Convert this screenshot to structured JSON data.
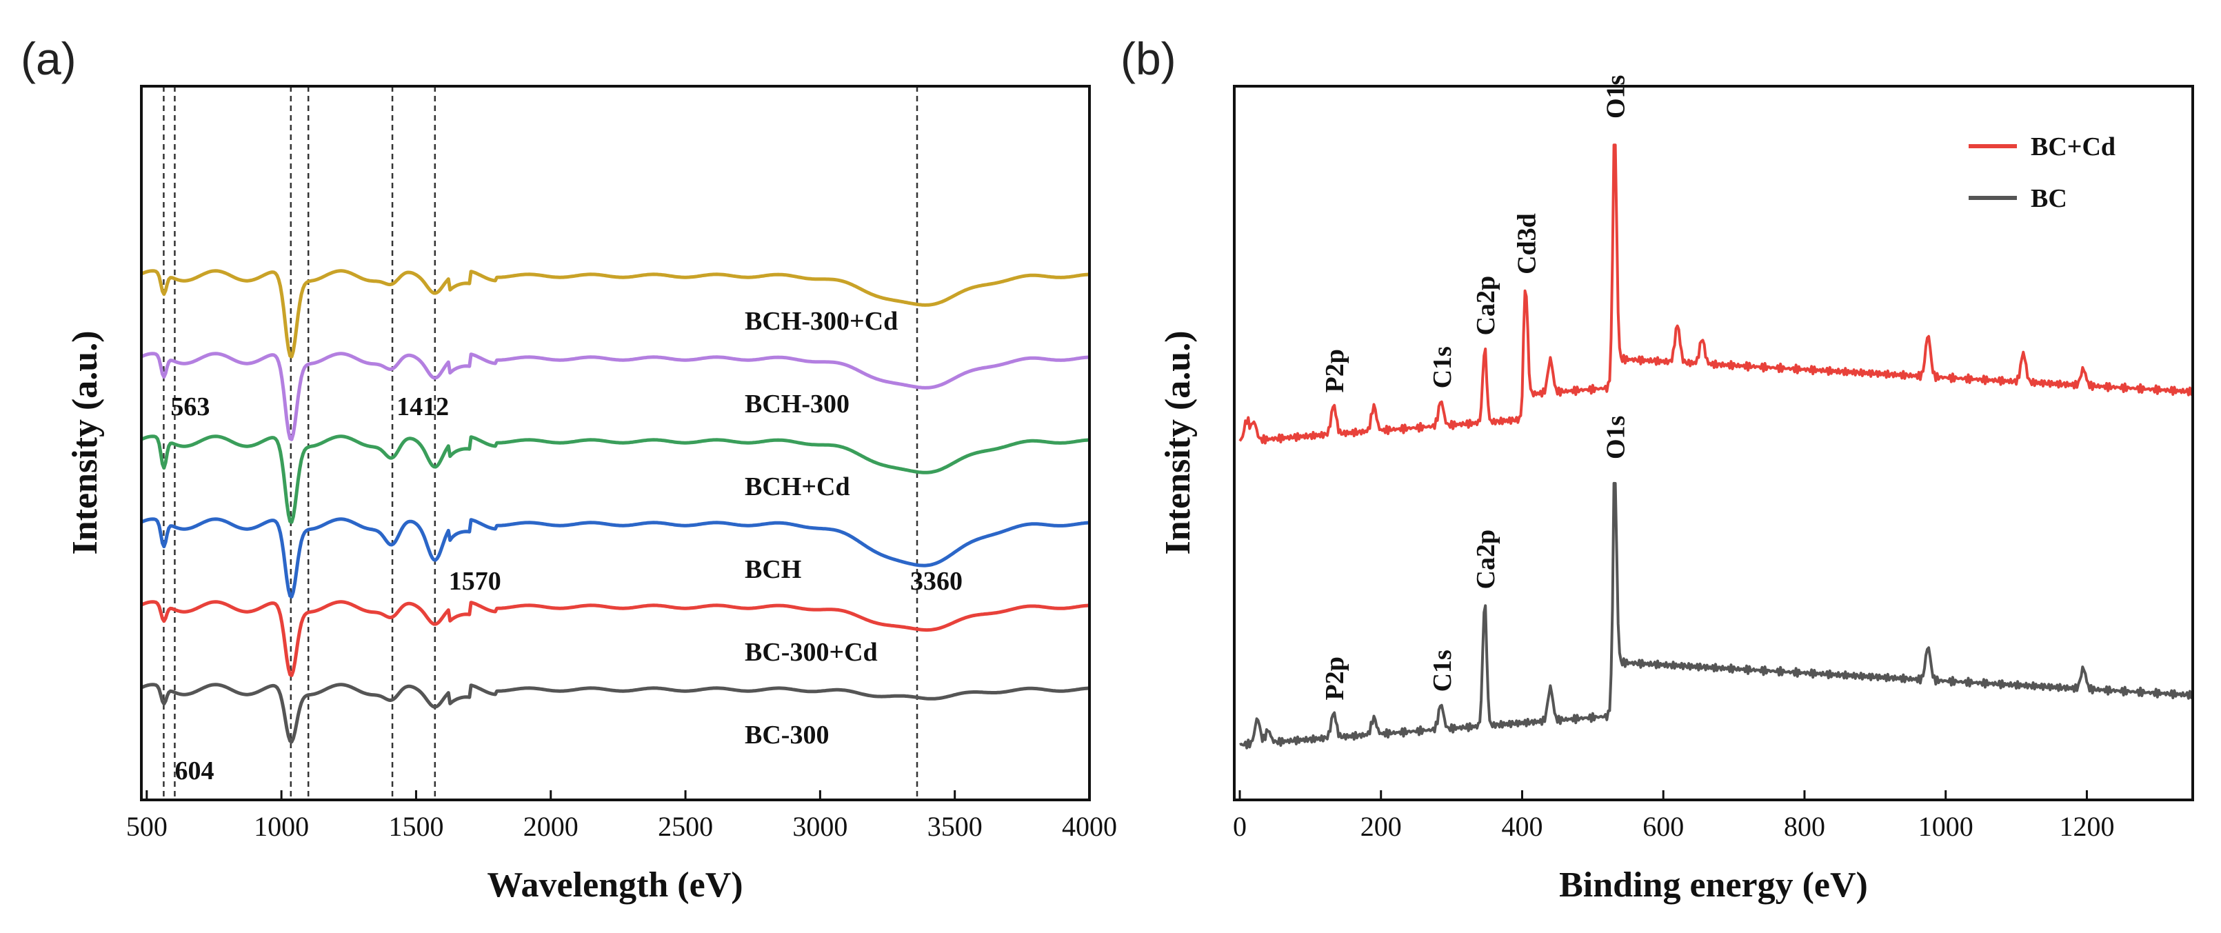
{
  "chart_data": [
    {
      "panel": "(a)",
      "type": "line",
      "xlabel": "Wavelength (eV)",
      "ylabel": "Intensity (a.u.)",
      "xlim": [
        480,
        4000
      ],
      "xticks": [
        500,
        1000,
        1500,
        2000,
        2500,
        3000,
        3500,
        4000
      ],
      "reference_lines": [
        563,
        604,
        1035,
        1100,
        1412,
        1570,
        3360
      ],
      "peak_labels": [
        {
          "text": "563",
          "x": 563
        },
        {
          "text": "1412",
          "x": 1412
        },
        {
          "text": "1570",
          "x": 1570
        },
        {
          "text": "3360",
          "x": 3360
        },
        {
          "text": "604",
          "x": 604
        }
      ],
      "series": [
        {
          "name": "BCH-300+Cd",
          "color": "#c9a227",
          "offset": 6,
          "dips": [
            [
              563,
              0.5
            ],
            [
              1035,
              2.0
            ],
            [
              1412,
              0.25
            ],
            [
              1570,
              0.3
            ],
            [
              3360,
              0.7
            ]
          ]
        },
        {
          "name": "BCH-300",
          "color": "#b37fe0",
          "offset": 5,
          "dips": [
            [
              563,
              0.5
            ],
            [
              1035,
              2.0
            ],
            [
              1412,
              0.3
            ],
            [
              1570,
              0.35
            ],
            [
              3360,
              0.7
            ]
          ]
        },
        {
          "name": "BCH+Cd",
          "color": "#3a9e5a",
          "offset": 4,
          "dips": [
            [
              563,
              0.7
            ],
            [
              1035,
              2.0
            ],
            [
              1412,
              0.45
            ],
            [
              1570,
              0.5
            ],
            [
              3360,
              0.75
            ]
          ]
        },
        {
          "name": "BCH",
          "color": "#2b66c8",
          "offset": 3,
          "dips": [
            [
              563,
              0.6
            ],
            [
              1035,
              1.8
            ],
            [
              1412,
              0.55
            ],
            [
              1570,
              0.75
            ],
            [
              3360,
              1.0
            ]
          ]
        },
        {
          "name": "BC-300+Cd",
          "color": "#e8413a",
          "offset": 2,
          "dips": [
            [
              563,
              0.4
            ],
            [
              1035,
              1.7
            ],
            [
              1412,
              0.3
            ],
            [
              1570,
              0.3
            ],
            [
              3360,
              0.55
            ]
          ]
        },
        {
          "name": "BC-300",
          "color": "#555555",
          "offset": 1,
          "dips": [
            [
              563,
              0.4
            ],
            [
              1035,
              1.3
            ],
            [
              1412,
              0.3
            ],
            [
              1570,
              0.3
            ],
            [
              3360,
              0.2
            ]
          ]
        }
      ]
    },
    {
      "panel": "(b)",
      "type": "line",
      "xlabel": "Binding energy (eV)",
      "ylabel": "Intensity (a.u.)",
      "xlim": [
        0,
        1350
      ],
      "xticks": [
        0,
        200,
        400,
        600,
        800,
        1000,
        1200
      ],
      "legend": [
        {
          "name": "BC+Cd",
          "color": "#e8413a"
        },
        {
          "name": "BC",
          "color": "#555555"
        }
      ],
      "series": [
        {
          "name": "BC+Cd",
          "color": "#e8413a",
          "peaks": [
            [
              10,
              0.25
            ],
            [
              20,
              0.22
            ],
            [
              133,
              0.35
            ],
            [
              190,
              0.3
            ],
            [
              285,
              0.3
            ],
            [
              347,
              0.9
            ],
            [
              405,
              1.3
            ],
            [
              440,
              0.4
            ],
            [
              531,
              2.75
            ],
            [
              620,
              0.45
            ],
            [
              655,
              0.3
            ],
            [
              975,
              0.5
            ],
            [
              1110,
              0.35
            ],
            [
              1195,
              0.2
            ]
          ],
          "annotations": [
            {
              "text": "P2p",
              "x": 133
            },
            {
              "text": "C1s",
              "x": 285
            },
            {
              "text": "Ca2p",
              "x": 347
            },
            {
              "text": "Cd3d",
              "x": 405
            },
            {
              "text": "O1s",
              "x": 531
            }
          ]
        },
        {
          "name": "BC",
          "color": "#555555",
          "peaks": [
            [
              25,
              0.3
            ],
            [
              40,
              0.15
            ],
            [
              133,
              0.3
            ],
            [
              190,
              0.2
            ],
            [
              285,
              0.3
            ],
            [
              347,
              1.5
            ],
            [
              440,
              0.4
            ],
            [
              531,
              2.3
            ],
            [
              975,
              0.4
            ],
            [
              1195,
              0.25
            ]
          ],
          "annotations": [
            {
              "text": "P2p",
              "x": 133
            },
            {
              "text": "C1s",
              "x": 285
            },
            {
              "text": "Ca2p",
              "x": 347
            },
            {
              "text": "O1s",
              "x": 531
            }
          ]
        }
      ]
    }
  ]
}
